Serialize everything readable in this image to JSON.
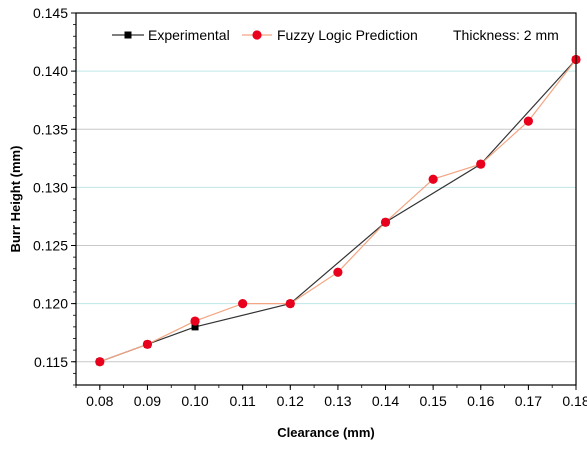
{
  "chart_data": {
    "type": "line",
    "xlabel": "Clearance (mm)",
    "ylabel": "Burr Height (mm)",
    "xlim": [
      0.075,
      0.18
    ],
    "ylim": [
      0.113,
      0.145
    ],
    "x_ticks": [
      "0.08",
      "0.09",
      "0.10",
      "0.11",
      "0.12",
      "0.13",
      "0.14",
      "0.15",
      "0.16",
      "0.17",
      "0.18"
    ],
    "y_ticks": [
      "0.115",
      "0.120",
      "0.125",
      "0.130",
      "0.135",
      "0.140",
      "0.145"
    ],
    "grid": true,
    "legend_position": "top",
    "annotation": "Thickness: 2 mm",
    "series": [
      {
        "name": "Experimental",
        "marker": "square",
        "color": "#333333",
        "markerColor": "#000000",
        "x": [
          0.08,
          0.09,
          0.1,
          0.12,
          0.14,
          0.16,
          0.18
        ],
        "y": [
          0.115,
          0.1165,
          0.118,
          0.12,
          0.127,
          0.132,
          0.141
        ]
      },
      {
        "name": "Fuzzy Logic Prediction",
        "marker": "circle",
        "color": "#f4a582",
        "markerColor": "#e8001c",
        "x": [
          0.08,
          0.09,
          0.1,
          0.11,
          0.12,
          0.13,
          0.14,
          0.15,
          0.16,
          0.17,
          0.18
        ],
        "y": [
          0.115,
          0.1165,
          0.1185,
          0.12,
          0.12,
          0.1227,
          0.127,
          0.1307,
          0.132,
          0.1357,
          0.141
        ]
      }
    ],
    "grid_colors": {
      "major": "#bfe6e6",
      "minor": "#c8c8c8"
    }
  }
}
